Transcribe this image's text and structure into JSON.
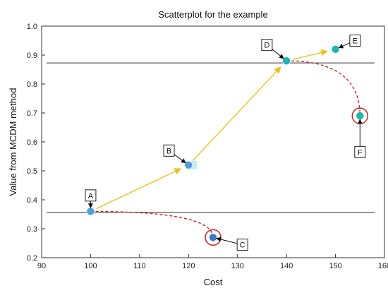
{
  "chart_data": {
    "type": "scatter",
    "title": "Scatterplot for the example",
    "xlabel": "Cost",
    "ylabel": "Value from MCDM method",
    "xlim": [
      90,
      160
    ],
    "ylim": [
      0.2,
      1.0
    ],
    "xticks": [
      90,
      100,
      110,
      120,
      130,
      140,
      150,
      160
    ],
    "yticks": [
      0.2,
      0.3,
      0.4,
      0.5,
      0.6,
      0.7,
      0.8,
      0.9,
      1.0
    ],
    "grid": false,
    "points": [
      {
        "label": "A",
        "x": 100,
        "y": 0.36,
        "color": "#4f9fd9"
      },
      {
        "label": "B",
        "x": 120,
        "y": 0.52,
        "color": "#4f9fd9"
      },
      {
        "label": "C",
        "x": 125,
        "y": 0.27,
        "color": "#3b78c6"
      },
      {
        "label": "D",
        "x": 140,
        "y": 0.88,
        "color": "#19b7b0"
      },
      {
        "label": "E",
        "x": 150,
        "y": 0.92,
        "color": "#19b7b0"
      },
      {
        "label": "F",
        "x": 155,
        "y": 0.69,
        "color": "#19b7b0"
      }
    ],
    "reference_lines": [
      {
        "y": 0.357,
        "x_from": 91,
        "x_to": 158
      },
      {
        "y": 0.873,
        "x_from": 91,
        "x_to": 158
      }
    ],
    "efficient_path": [
      "A",
      "B",
      "D",
      "E"
    ],
    "dominated_links": [
      [
        "A",
        "C"
      ],
      [
        "D",
        "F"
      ]
    ],
    "highlighted": [
      "C",
      "F"
    ],
    "colors": {
      "path_arrow": "#e8c51f",
      "dashed_link": "#d62020",
      "highlight_ring": "#d62020",
      "reference_line": "#333333",
      "label_arrow": "#111111"
    }
  }
}
